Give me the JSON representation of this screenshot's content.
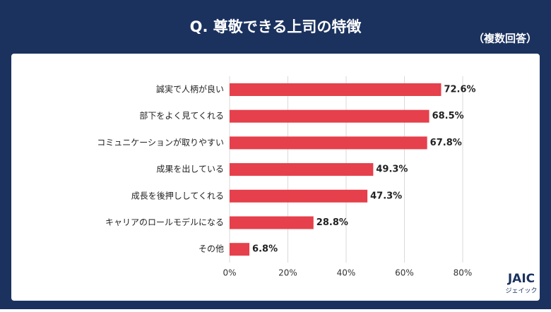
{
  "chart_data": {
    "type": "bar",
    "orientation": "horizontal",
    "title": "Q. 尊敬できる上司の特徴",
    "subtitle": "（複数回答）",
    "categories": [
      "誠実で人柄が良い",
      "部下をよく見てくれる",
      "コミュニケーションが取りやすい",
      "成果を出している",
      "成長を後押ししてくれる",
      "キャリアのロールモデルになる",
      "その他"
    ],
    "values": [
      72.6,
      68.5,
      67.8,
      49.3,
      47.3,
      28.8,
      6.8
    ],
    "value_labels": [
      "72.6%",
      "68.5%",
      "67.8%",
      "49.3%",
      "47.3%",
      "28.8%",
      "6.8%"
    ],
    "color": "#e5404b",
    "xlim": [
      0,
      80
    ],
    "xticks": [
      {
        "value": 0,
        "label": "0%"
      },
      {
        "value": 20,
        "label": "20%"
      },
      {
        "value": 40,
        "label": "40%"
      },
      {
        "value": 60,
        "label": "60%"
      },
      {
        "value": 80,
        "label": "80%"
      }
    ],
    "grid": true
  },
  "logo": {
    "name": "JAIC",
    "reading": "ジェイック"
  }
}
